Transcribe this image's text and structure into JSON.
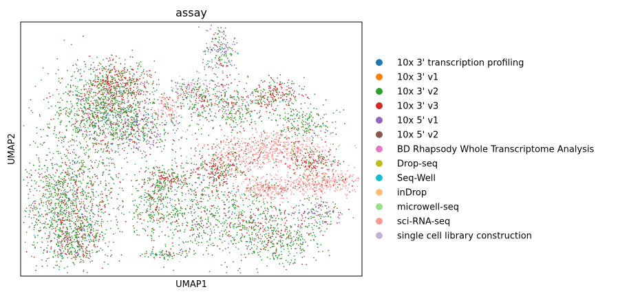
{
  "chart_data": {
    "type": "scatter",
    "title": "assay",
    "xlabel": "UMAP1",
    "ylabel": "UMAP2",
    "xticks": [],
    "yticks": [],
    "grid": false,
    "legend_position": "right",
    "series": [
      {
        "name": "10x 3' transcription profiling",
        "color": "#1f77b4"
      },
      {
        "name": "10x 3' v1",
        "color": "#ff7f0e"
      },
      {
        "name": "10x 3' v2",
        "color": "#2ca02c"
      },
      {
        "name": "10x 3' v3",
        "color": "#d62728"
      },
      {
        "name": "10x 5' v1",
        "color": "#9467bd"
      },
      {
        "name": "10x 5' v2",
        "color": "#8c564b"
      },
      {
        "name": "BD Rhapsody Whole Transcriptome Analysis",
        "color": "#e377c2"
      },
      {
        "name": "Drop-seq",
        "color": "#bcbd22"
      },
      {
        "name": "Seq-Well",
        "color": "#17becf"
      },
      {
        "name": "inDrop",
        "color": "#ffbb78"
      },
      {
        "name": "microwell-seq",
        "color": "#98df8a"
      },
      {
        "name": "sci-RNA-seq",
        "color": "#ff9896"
      },
      {
        "name": "single cell library construction",
        "color": "#c5b0d5"
      }
    ]
  }
}
